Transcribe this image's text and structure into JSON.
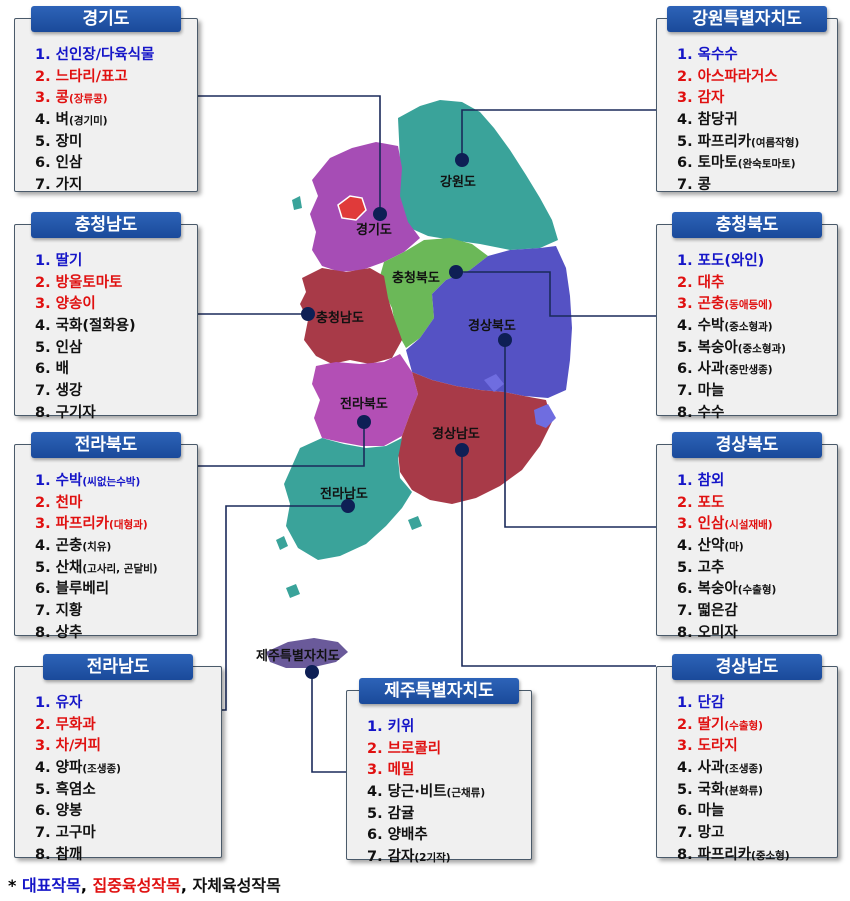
{
  "colors": {
    "title_bg": "#1f55a8",
    "representative": "#1515c8",
    "intensive": "#e01010",
    "self": "#111111",
    "gyeonggi": "#a64db5",
    "gangwon": "#3aa39a",
    "chungnam": "#a83a48",
    "chungbuk": "#6bb858",
    "gyeongbuk": "#5552c4",
    "jeonbuk": "#b34fb5",
    "jeonnam": "#3aa39a",
    "gyeongnam": "#a83a48",
    "jeju": "#6a5a9a",
    "seoul": "#e03a3a"
  },
  "map_labels": {
    "gangwon": "강원도",
    "gyeonggi": "경기도",
    "chungbuk": "충청북도",
    "chungnam": "충청남도",
    "gyeongbuk": "경상북도",
    "jeonbuk": "전라북도",
    "gyeongnam": "경상남도",
    "jeonnam": "전라남도",
    "jeju": "제주특별자치도"
  },
  "provinces": {
    "gyeonggi": {
      "title": "경기도",
      "items": [
        {
          "num": "1.",
          "name": "선인장/다육식물",
          "note": "",
          "cat": 0
        },
        {
          "num": "2.",
          "name": "느타리/표고",
          "note": "",
          "cat": 1
        },
        {
          "num": "3.",
          "name": "콩",
          "note": "(장류콩)",
          "cat": 1
        },
        {
          "num": "4.",
          "name": "벼",
          "note": "(경기미)",
          "cat": 2
        },
        {
          "num": "5.",
          "name": "장미",
          "note": "",
          "cat": 2
        },
        {
          "num": "6.",
          "name": "인삼",
          "note": "",
          "cat": 2
        },
        {
          "num": "7.",
          "name": "가지",
          "note": "",
          "cat": 2
        }
      ]
    },
    "gangwon": {
      "title": "강원특별자치도",
      "items": [
        {
          "num": "1.",
          "name": "옥수수",
          "note": "",
          "cat": 0
        },
        {
          "num": "2.",
          "name": "아스파라거스",
          "note": "",
          "cat": 1
        },
        {
          "num": "3.",
          "name": "감자",
          "note": "",
          "cat": 1
        },
        {
          "num": "4.",
          "name": "참당귀",
          "note": "",
          "cat": 2
        },
        {
          "num": "5.",
          "name": "파프리카",
          "note": "(여름작형)",
          "cat": 2
        },
        {
          "num": "6.",
          "name": "토마토",
          "note": "(완숙토마토)",
          "cat": 2
        },
        {
          "num": "7.",
          "name": "콩",
          "note": "",
          "cat": 2
        }
      ]
    },
    "chungnam": {
      "title": "충청남도",
      "items": [
        {
          "num": "1.",
          "name": "딸기",
          "note": "",
          "cat": 0
        },
        {
          "num": "2.",
          "name": "방울토마토",
          "note": "",
          "cat": 1
        },
        {
          "num": "3.",
          "name": "양송이",
          "note": "",
          "cat": 1
        },
        {
          "num": "4.",
          "name": "국화(절화용)",
          "note": "",
          "cat": 2
        },
        {
          "num": "5.",
          "name": "인삼",
          "note": "",
          "cat": 2
        },
        {
          "num": "6.",
          "name": "배",
          "note": "",
          "cat": 2
        },
        {
          "num": "7.",
          "name": "생강",
          "note": "",
          "cat": 2
        },
        {
          "num": "8.",
          "name": "구기자",
          "note": "",
          "cat": 2
        }
      ]
    },
    "chungbuk": {
      "title": "충청북도",
      "items": [
        {
          "num": "1.",
          "name": "포도(와인)",
          "note": "",
          "cat": 0
        },
        {
          "num": "2.",
          "name": "대추",
          "note": "",
          "cat": 1
        },
        {
          "num": "3.",
          "name": "곤충",
          "note": "(동애등에)",
          "cat": 1
        },
        {
          "num": "4.",
          "name": "수박",
          "note": "(중소형과)",
          "cat": 2
        },
        {
          "num": "5.",
          "name": "복숭아",
          "note": "(중소형과)",
          "cat": 2
        },
        {
          "num": "6.",
          "name": "사과",
          "note": "(중만생종)",
          "cat": 2
        },
        {
          "num": "7.",
          "name": "마늘",
          "note": "",
          "cat": 2
        },
        {
          "num": "8.",
          "name": "수수",
          "note": "",
          "cat": 2
        }
      ]
    },
    "jeonbuk": {
      "title": "전라북도",
      "items": [
        {
          "num": "1.",
          "name": "수박",
          "note": "(씨없는수박)",
          "cat": 0
        },
        {
          "num": "2.",
          "name": "천마",
          "note": "",
          "cat": 1
        },
        {
          "num": "3.",
          "name": "파프리카",
          "note": "(대형과)",
          "cat": 1
        },
        {
          "num": "4.",
          "name": "곤충",
          "note": "(치유)",
          "cat": 2
        },
        {
          "num": "5.",
          "name": "산채",
          "note": "(고사리, 곤달비)",
          "cat": 2
        },
        {
          "num": "6.",
          "name": "블루베리",
          "note": "",
          "cat": 2
        },
        {
          "num": "7.",
          "name": "지황",
          "note": "",
          "cat": 2
        },
        {
          "num": "8.",
          "name": "상추",
          "note": "",
          "cat": 2
        }
      ]
    },
    "gyeongbuk": {
      "title": "경상북도",
      "items": [
        {
          "num": "1.",
          "name": "참외",
          "note": "",
          "cat": 0
        },
        {
          "num": "2.",
          "name": "포도",
          "note": "",
          "cat": 1
        },
        {
          "num": "3.",
          "name": "인삼",
          "note": "(시설재배)",
          "cat": 1
        },
        {
          "num": "4.",
          "name": "산약",
          "note": "(마)",
          "cat": 2
        },
        {
          "num": "5.",
          "name": "고추",
          "note": "",
          "cat": 2
        },
        {
          "num": "6.",
          "name": "복숭아",
          "note": "(수출형)",
          "cat": 2
        },
        {
          "num": "7.",
          "name": "떫은감",
          "note": "",
          "cat": 2
        },
        {
          "num": "8.",
          "name": "오미자",
          "note": "",
          "cat": 2
        }
      ]
    },
    "jeonnam": {
      "title": "전라남도",
      "items": [
        {
          "num": "1.",
          "name": "유자",
          "note": "",
          "cat": 0
        },
        {
          "num": "2.",
          "name": "무화과",
          "note": "",
          "cat": 1
        },
        {
          "num": "3.",
          "name": "차/커피",
          "note": "",
          "cat": 1
        },
        {
          "num": "4.",
          "name": "양파",
          "note": "(조생종)",
          "cat": 2
        },
        {
          "num": "5.",
          "name": "흑염소",
          "note": "",
          "cat": 2
        },
        {
          "num": "6.",
          "name": "양봉",
          "note": "",
          "cat": 2
        },
        {
          "num": "7.",
          "name": "고구마",
          "note": "",
          "cat": 2
        },
        {
          "num": "8.",
          "name": "참깨",
          "note": "",
          "cat": 2
        }
      ]
    },
    "jeju": {
      "title": "제주특별자치도",
      "items": [
        {
          "num": "1.",
          "name": "키위",
          "note": "",
          "cat": 0
        },
        {
          "num": "2.",
          "name": "브로콜리",
          "note": "",
          "cat": 1
        },
        {
          "num": "3.",
          "name": "메밀",
          "note": "",
          "cat": 1
        },
        {
          "num": "4.",
          "name": "당근·비트",
          "note": "(근채류)",
          "cat": 2
        },
        {
          "num": "5.",
          "name": "감귤",
          "note": "",
          "cat": 2
        },
        {
          "num": "6.",
          "name": "양배추",
          "note": "",
          "cat": 2
        },
        {
          "num": "7.",
          "name": "감자",
          "note": "(2기작)",
          "cat": 2
        }
      ]
    },
    "gyeongnam": {
      "title": "경상남도",
      "items": [
        {
          "num": "1.",
          "name": "단감",
          "note": "",
          "cat": 0
        },
        {
          "num": "2.",
          "name": "딸기",
          "note": "(수출형)",
          "cat": 1
        },
        {
          "num": "3.",
          "name": "도라지",
          "note": "",
          "cat": 1
        },
        {
          "num": "4.",
          "name": "사과",
          "note": "(조생종)",
          "cat": 2
        },
        {
          "num": "5.",
          "name": "국화",
          "note": "(분화류)",
          "cat": 2
        },
        {
          "num": "6.",
          "name": "마늘",
          "note": "",
          "cat": 2
        },
        {
          "num": "7.",
          "name": "망고",
          "note": "",
          "cat": 2
        },
        {
          "num": "8.",
          "name": "파프리카",
          "note": "(중소형)",
          "cat": 2
        }
      ]
    }
  },
  "legend": {
    "prefix": "* ",
    "representative": "대표작목",
    "sep1": ", ",
    "intensive": "집중육성작목",
    "sep2": ", ",
    "self": "자체육성작목"
  }
}
